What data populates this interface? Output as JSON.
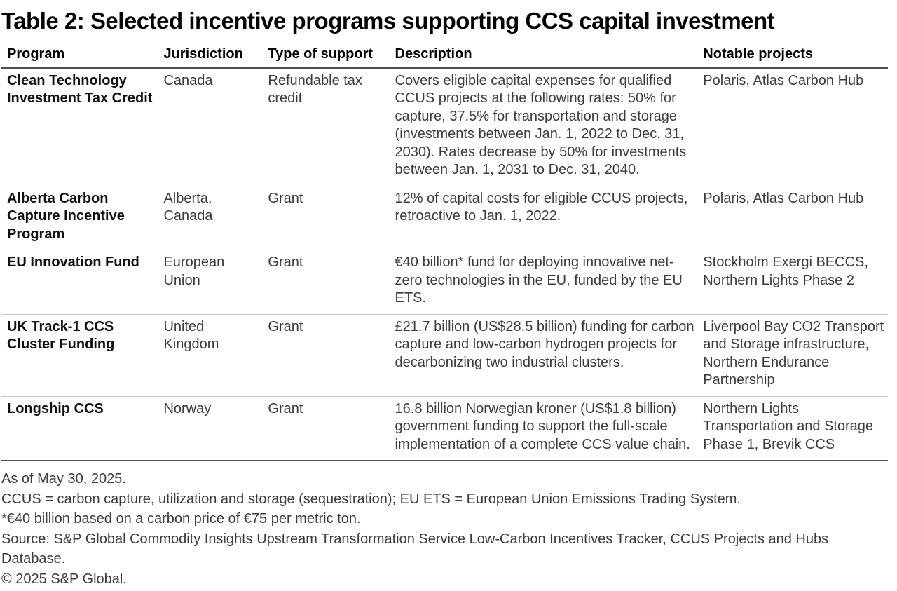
{
  "title": "Table 2: Selected incentive programs supporting CCS capital investment",
  "table": {
    "columns": [
      "Program",
      "Jurisdiction",
      "Type of support",
      "Description",
      "Notable projects"
    ],
    "rows": [
      {
        "program": "Clean Technology Investment Tax Credit",
        "jurisdiction": "Canada",
        "support": "Refundable tax credit",
        "description": "Covers eligible capital expenses for qualified CCUS projects at the following rates: 50% for capture, 37.5% for transportation and storage (investments between Jan. 1, 2022 to Dec. 31, 2030). Rates decrease by 50% for investments between Jan. 1, 2031 to Dec. 31, 2040.",
        "projects": "Polaris, Atlas Carbon Hub"
      },
      {
        "program": "Alberta Carbon Capture Incentive Program",
        "jurisdiction": "Alberta, Canada",
        "support": "Grant",
        "description": "12% of capital costs for eligible CCUS projects, retroactive to Jan. 1, 2022.",
        "projects": "Polaris, Atlas Carbon Hub"
      },
      {
        "program": "EU Innovation Fund",
        "jurisdiction": "European Union",
        "support": "Grant",
        "description": "€40 billion* fund for deploying innovative net-zero technologies in the EU, funded by the EU ETS.",
        "projects": "Stockholm Exergi BECCS, Northern Lights Phase 2"
      },
      {
        "program": "UK Track-1 CCS Cluster Funding",
        "jurisdiction": "United Kingdom",
        "support": "Grant",
        "description": "£21.7 billion (US$28.5 billion) funding for carbon capture and low-carbon hydrogen projects for decarbonizing two industrial clusters.",
        "projects": "Liverpool Bay CO2 Transport and Storage infrastructure, Northern Endurance Partnership"
      },
      {
        "program": "Longship CCS",
        "jurisdiction": "Norway",
        "support": "Grant",
        "description": "16.8 billion Norwegian kroner (US$1.8 billion) government funding to support the full-scale implementation of a complete CCS value chain.",
        "projects": "Northern Lights Transportation and Storage Phase 1, Brevik CCS"
      }
    ]
  },
  "notes": {
    "as_of": "As of May 30, 2025.",
    "abbreviations": "CCUS = carbon capture, utilization and storage (sequestration); EU ETS = European Union Emissions Trading System.",
    "footnote": "*€40 billion based on a carbon price of €75 per metric ton.",
    "source": "Source: S&P Global Commodity Insights Upstream Transformation Service Low-Carbon Incentives Tracker, CCUS Projects and Hubs Database.",
    "copyright": "© 2025 S&P Global."
  },
  "colors": {
    "heading_text": "#000000",
    "body_text": "#3c3c3c",
    "rule_dark": "#4d4d4d",
    "rule_light": "#c6c6c6"
  }
}
